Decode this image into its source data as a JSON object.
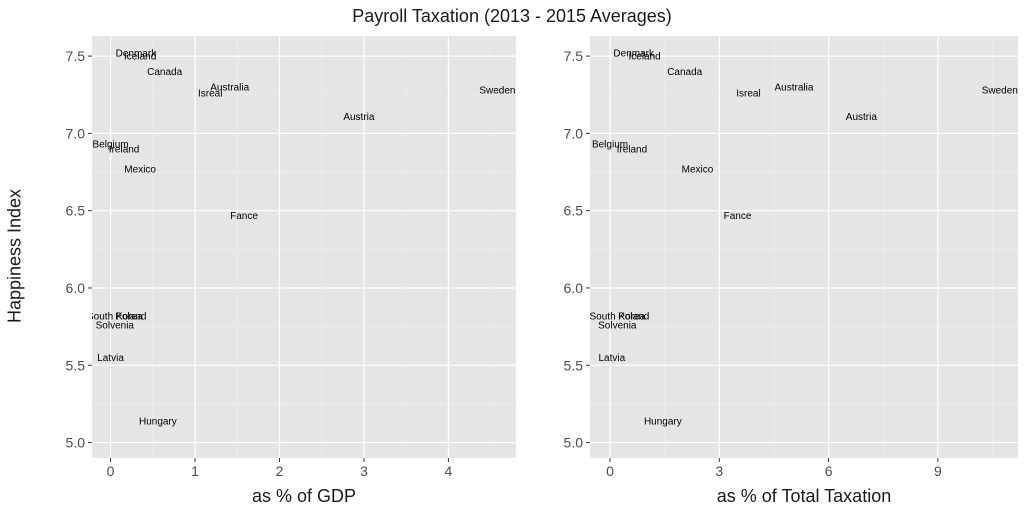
{
  "figure": {
    "title": "Payroll Taxation (2013 - 2015 Averages)",
    "ylabel": "Happiness Index"
  },
  "colors": {
    "panel_bg": "#e5e5e5",
    "grid_major": "#ffffff",
    "grid_minor": "#f0f0f0",
    "tick_text": "#4d4d4d",
    "label_text": "#000000"
  },
  "chart_data": [
    {
      "type": "scatter",
      "title": "Payroll Taxation (2013 - 2015 Averages)",
      "xlabel": "as % of GDP",
      "ylabel": "Happiness Index",
      "xlim": [
        -0.22,
        4.8
      ],
      "ylim": [
        4.9,
        7.63
      ],
      "xticks": [
        0,
        1,
        2,
        3,
        4
      ],
      "yticks": [
        5.0,
        5.5,
        6.0,
        6.5,
        7.0,
        7.5
      ],
      "ytick_labels": [
        "5.0",
        "5.5",
        "6.0",
        "6.5",
        "7.0",
        "7.5"
      ],
      "points": [
        {
          "label": "Denmark",
          "x": 0.3,
          "y": 7.52
        },
        {
          "label": "Iceland",
          "x": 0.35,
          "y": 7.5
        },
        {
          "label": "Canada",
          "x": 0.64,
          "y": 7.4
        },
        {
          "label": "Australia",
          "x": 1.41,
          "y": 7.3
        },
        {
          "label": "Isreal",
          "x": 1.18,
          "y": 7.26
        },
        {
          "label": "Sweden",
          "x": 4.58,
          "y": 7.28
        },
        {
          "label": "Austria",
          "x": 2.94,
          "y": 7.11
        },
        {
          "label": "Belgium",
          "x": 0.0,
          "y": 6.93
        },
        {
          "label": "Ireland",
          "x": 0.16,
          "y": 6.9
        },
        {
          "label": "Mexico",
          "x": 0.35,
          "y": 6.77
        },
        {
          "label": "Fance",
          "x": 1.58,
          "y": 6.47
        },
        {
          "label": "South Korea",
          "x": 0.05,
          "y": 5.82
        },
        {
          "label": "Poland",
          "x": 0.24,
          "y": 5.82
        },
        {
          "label": "Solvenia",
          "x": 0.05,
          "y": 5.76
        },
        {
          "label": "Latvia",
          "x": 0.0,
          "y": 5.55
        },
        {
          "label": "Hungary",
          "x": 0.56,
          "y": 5.14
        }
      ]
    },
    {
      "type": "scatter",
      "title": "Payroll Taxation (2013 - 2015 Averages)",
      "xlabel": "as % of Total Taxation",
      "ylabel": "Happiness Index",
      "xlim": [
        -0.55,
        11.2
      ],
      "ylim": [
        4.9,
        7.63
      ],
      "xticks": [
        0,
        3,
        6,
        9
      ],
      "yticks": [
        5.0,
        5.5,
        6.0,
        6.5,
        7.0,
        7.5
      ],
      "ytick_labels": [
        "5.0",
        "5.5",
        "6.0",
        "6.5",
        "7.0",
        "7.5"
      ],
      "points": [
        {
          "label": "Denmark",
          "x": 0.65,
          "y": 7.52
        },
        {
          "label": "Iceland",
          "x": 0.95,
          "y": 7.5
        },
        {
          "label": "Canada",
          "x": 2.05,
          "y": 7.4
        },
        {
          "label": "Australia",
          "x": 5.05,
          "y": 7.3
        },
        {
          "label": "Isreal",
          "x": 3.8,
          "y": 7.26
        },
        {
          "label": "Sweden",
          "x": 10.7,
          "y": 7.28
        },
        {
          "label": "Austria",
          "x": 6.9,
          "y": 7.11
        },
        {
          "label": "Belgium",
          "x": 0.0,
          "y": 6.93
        },
        {
          "label": "Ireland",
          "x": 0.6,
          "y": 6.9
        },
        {
          "label": "Mexico",
          "x": 2.4,
          "y": 6.77
        },
        {
          "label": "Fance",
          "x": 3.5,
          "y": 6.47
        },
        {
          "label": "South Korea",
          "x": 0.2,
          "y": 5.82
        },
        {
          "label": "Poland",
          "x": 0.65,
          "y": 5.82
        },
        {
          "label": "Solvenia",
          "x": 0.2,
          "y": 5.76
        },
        {
          "label": "Latvia",
          "x": 0.05,
          "y": 5.55
        },
        {
          "label": "Hungary",
          "x": 1.45,
          "y": 5.14
        }
      ]
    }
  ]
}
